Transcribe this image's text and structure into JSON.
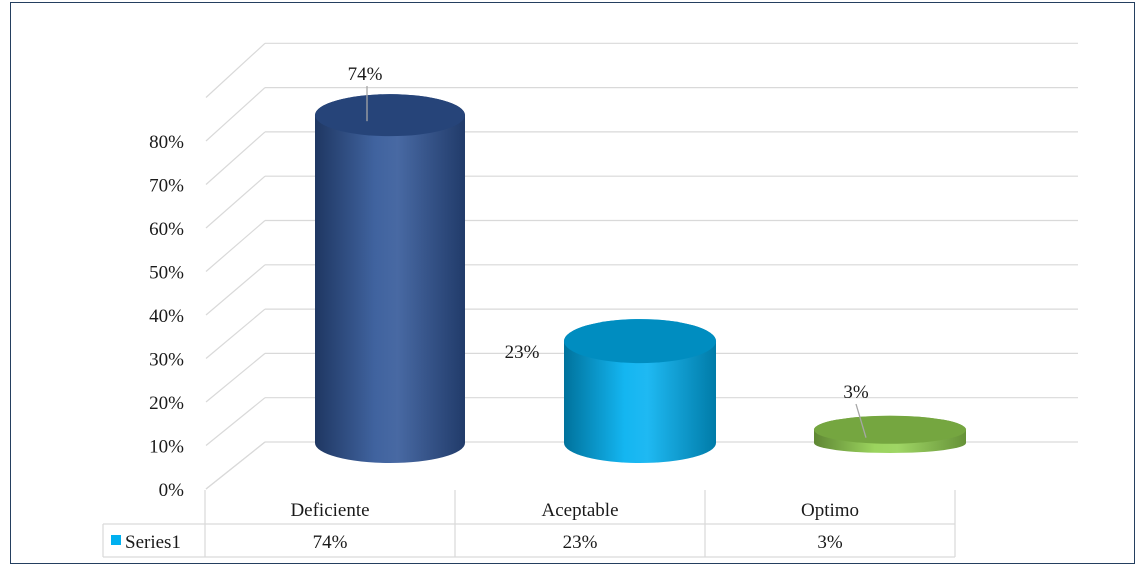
{
  "chart_data": {
    "type": "bar",
    "style": "3d-cylinder",
    "categories": [
      "Deficiente",
      "Aceptable",
      "Optimo"
    ],
    "series": [
      {
        "name": "Series1",
        "values": [
          0.74,
          0.23,
          0.03
        ],
        "value_labels": [
          "74%",
          "23%",
          "3%"
        ],
        "colors": [
          "#2f5597",
          "#00b0f0",
          "#92d050"
        ]
      }
    ],
    "ylim": [
      0,
      0.8
    ],
    "yticks": [
      0,
      0.1,
      0.2,
      0.3,
      0.4,
      0.5,
      0.6,
      0.7,
      0.8
    ],
    "ytick_labels": [
      "0%",
      "10%",
      "20%",
      "30%",
      "40%",
      "50%",
      "60%",
      "70%",
      "80%"
    ],
    "grid": true,
    "data_table": true,
    "legend_key_color": "#00b0f0"
  }
}
